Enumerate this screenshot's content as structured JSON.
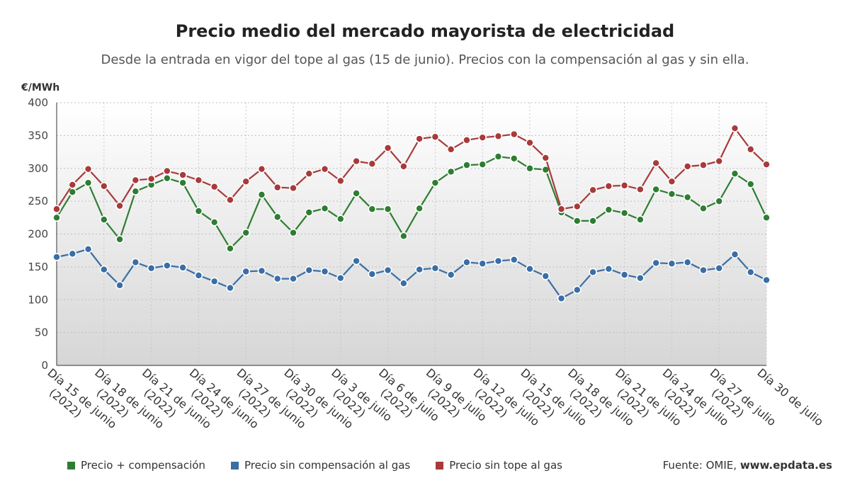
{
  "chart_data": {
    "type": "line",
    "title": "Precio medio del mercado mayorista de electricidad",
    "subtitle": "Desde la entrada en vigor del tope al gas (15 de junio). Precios con la compensación al gas y sin ella.",
    "ylabel": "€/MWh",
    "ylim": [
      0,
      400
    ],
    "yticks": [
      0,
      50,
      100,
      150,
      200,
      250,
      300,
      350,
      400
    ],
    "grid": true,
    "legend_position": "bottom",
    "x_labels": [
      "Día 15 de junio (2022)",
      "Día 18 de junio (2022)",
      "Día 21 de junio (2022)",
      "Día 24 de junio (2022)",
      "Día 27 de junio (2022)",
      "Día 30 de junio (2022)",
      "Día 3 de julio (2022)",
      "Día 6 de julio (2022)",
      "Día 9 de julio (2022)",
      "Día 12 de julio (2022)",
      "Día 15 de julio (2022)",
      "Día 18 de julio (2022)",
      "Día 21 de julio (2022)",
      "Día 24 de julio (2022)",
      "Día 27 de julio (2022)",
      "Día 30 de julio"
    ],
    "series": [
      {
        "name": "Precio + compensación",
        "color": "#2e7d32",
        "values": [
          225,
          264,
          278,
          222,
          192,
          265,
          275,
          285,
          278,
          235,
          218,
          178,
          202,
          260,
          226,
          202,
          233,
          239,
          223,
          262,
          238,
          238,
          197,
          239,
          278,
          295,
          305,
          306,
          318,
          315,
          300,
          298,
          233,
          220,
          220,
          237,
          232,
          222,
          268,
          261,
          256,
          239,
          250,
          292,
          276,
          225
        ]
      },
      {
        "name": "Precio sin compensación al gas",
        "color": "#3a6ea5",
        "values": [
          165,
          170,
          177,
          146,
          122,
          157,
          148,
          152,
          149,
          137,
          128,
          118,
          143,
          144,
          132,
          132,
          145,
          143,
          133,
          159,
          139,
          145,
          125,
          146,
          148,
          138,
          157,
          155,
          159,
          161,
          147,
          136,
          102,
          115,
          142,
          147,
          138,
          133,
          156,
          155,
          157,
          145,
          148,
          169,
          142,
          130
        ]
      },
      {
        "name": "Precio sin tope al gas",
        "color": "#a83a3a",
        "values": [
          238,
          275,
          299,
          273,
          243,
          282,
          284,
          296,
          290,
          282,
          272,
          252,
          280,
          299,
          271,
          270,
          292,
          299,
          281,
          311,
          307,
          331,
          303,
          345,
          348,
          329,
          343,
          347,
          349,
          352,
          339,
          316,
          238,
          242,
          267,
          273,
          274,
          268,
          308,
          280,
          303,
          305,
          311,
          361,
          329,
          306
        ]
      }
    ]
  },
  "legend": {
    "items": [
      {
        "label": "Precio + compensación",
        "color": "#2e7d32"
      },
      {
        "label": "Precio sin compensación al gas",
        "color": "#3a6ea5"
      },
      {
        "label": "Precio sin tope al gas",
        "color": "#a83a3a"
      }
    ],
    "source_prefix": "Fuente: OMIE,",
    "source_site": "www.epdata.es"
  }
}
